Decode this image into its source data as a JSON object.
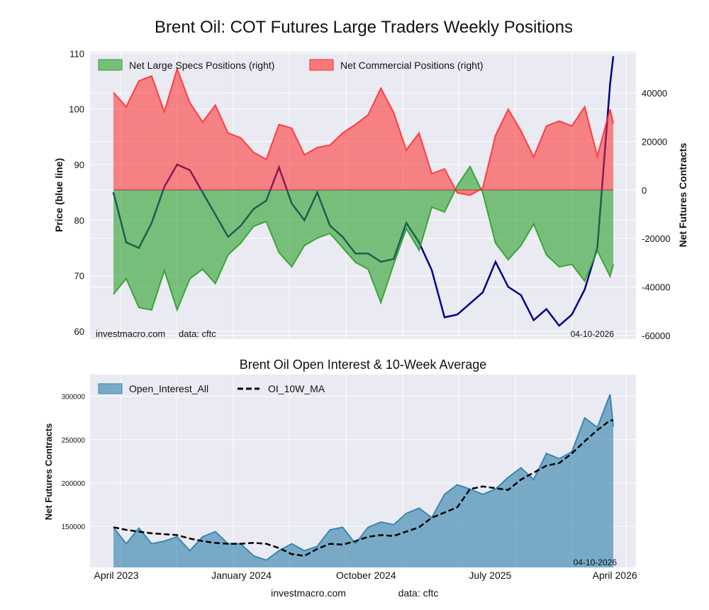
{
  "title": "Brent Oil: COT Futures Large Traders Weekly Positions",
  "colors": {
    "background": "#eaeaf2",
    "grid": "#ffffff",
    "price": "#00008b",
    "specs": "#2ca02c",
    "commercial": "#ff2a2a",
    "open_interest": "#3a87b0",
    "ma": "#000000"
  },
  "chart_data": [
    {
      "type": "line+area",
      "title": "Brent Oil: COT Futures Large Traders Weekly Positions",
      "ylabel": "Price (blue line)",
      "ylabel_right": "Net Futures Contracts",
      "ylim": [
        58.6,
        110.3
      ],
      "ylim_right": [
        -61500,
        57000
      ],
      "yticks": [
        60,
        70,
        80,
        90,
        100,
        110
      ],
      "yticks_right": [
        40000,
        20000,
        0,
        -20000,
        -40000,
        -60000
      ],
      "grid": true,
      "legend_position": "top-left",
      "watermark": "investmacro.com",
      "source": "data: cftc",
      "date_stamp": "04-10-2026",
      "x": [
        "2023-04-04",
        "2023-05-02",
        "2023-05-30",
        "2023-06-27",
        "2023-07-25",
        "2023-08-22",
        "2023-09-19",
        "2023-10-17",
        "2023-11-14",
        "2023-12-12",
        "2024-01-09",
        "2024-02-06",
        "2024-03-05",
        "2024-04-02",
        "2024-04-30",
        "2024-05-28",
        "2024-06-25",
        "2024-07-23",
        "2024-08-20",
        "2024-09-17",
        "2024-10-15",
        "2024-11-12",
        "2024-12-10",
        "2025-01-07",
        "2025-02-04",
        "2025-03-04",
        "2025-04-01",
        "2025-04-29",
        "2025-05-27",
        "2025-06-24",
        "2025-07-22",
        "2025-08-19",
        "2025-09-16",
        "2025-10-14",
        "2025-11-11",
        "2025-12-09",
        "2026-01-06",
        "2026-02-03",
        "2026-03-03",
        "2026-03-31",
        "2026-04-07"
      ],
      "series": [
        {
          "name": "Price",
          "axis": "left",
          "values": [
            85,
            76,
            75,
            79.5,
            86,
            90,
            89,
            85,
            81,
            77,
            79,
            82,
            83.5,
            89.5,
            83,
            80,
            85,
            79,
            77,
            74,
            74,
            72.5,
            73,
            79.5,
            76,
            71,
            62.5,
            63,
            65,
            67,
            72.5,
            68,
            66.5,
            62,
            64,
            61,
            63,
            67.5,
            75,
            104.5,
            109.5
          ]
        },
        {
          "name": "Net Large Specs Positions (right)",
          "axis": "right",
          "values": [
            -43000,
            -36600,
            -48500,
            -49500,
            -33200,
            -49500,
            -36600,
            -32700,
            -38600,
            -26800,
            -21900,
            -15000,
            -13000,
            -25800,
            -31700,
            -22900,
            -19900,
            -17900,
            -23800,
            -29800,
            -32700,
            -46500,
            -30700,
            -16000,
            -24800,
            -7100,
            -9100,
            1800,
            9700,
            -1200,
            -21900,
            -28800,
            -22900,
            -14000,
            -26800,
            -31700,
            -30700,
            -37600,
            -25000,
            -35600,
            -30700
          ]
        },
        {
          "name": "Net Commercial Positions (right)",
          "axis": "right",
          "values": [
            40200,
            34300,
            45000,
            47000,
            32300,
            50000,
            36000,
            28000,
            35000,
            23500,
            21500,
            15500,
            12600,
            27000,
            25500,
            14500,
            17500,
            18500,
            23500,
            27000,
            31000,
            42000,
            32000,
            16500,
            23500,
            6700,
            8700,
            -1200,
            -2200,
            800,
            22500,
            33300,
            24400,
            13600,
            26400,
            28400,
            26400,
            34300,
            14000,
            33300,
            27400
          ]
        }
      ]
    },
    {
      "type": "area+line",
      "title": "Brent Oil Open Interest & 10-Week Average",
      "ylabel": "Net Futures Contracts",
      "ylim": [
        102700,
        325000
      ],
      "yticks": [
        150000,
        200000,
        250000,
        300000
      ],
      "xticks": [
        {
          "label": "April 2023",
          "date": "2023-04-01"
        },
        {
          "label": "January 2024",
          "date": "2024-01-01"
        },
        {
          "label": "October 2024",
          "date": "2024-10-01"
        },
        {
          "label": "July 2025",
          "date": "2025-07-01"
        },
        {
          "label": "April 2026",
          "date": "2026-04-01"
        }
      ],
      "grid": true,
      "legend_position": "top-left",
      "date_stamp": "04-10-2026",
      "series": [
        {
          "name": "Open_Interest_All",
          "values": [
            149000,
            130000,
            148000,
            130000,
            133000,
            138000,
            122000,
            138000,
            144000,
            130000,
            130000,
            116000,
            111000,
            122000,
            130000,
            122000,
            127000,
            146000,
            149000,
            130000,
            149000,
            155000,
            152000,
            165000,
            171000,
            160000,
            187000,
            198000,
            193000,
            187000,
            193000,
            206500,
            217500,
            204000,
            234000,
            228000,
            236000,
            275000,
            264000,
            302000,
            265000
          ]
        },
        {
          "name": "OI_10W_MA",
          "values": [
            149000,
            146000,
            144000,
            142000,
            141000,
            140000,
            136000,
            133000,
            131000,
            130000,
            130000,
            131000,
            130000,
            125000,
            118000,
            116000,
            124000,
            130000,
            129000,
            133000,
            138000,
            140000,
            139000,
            144000,
            149000,
            160000,
            166000,
            172000,
            193000,
            196000,
            194000,
            192000,
            204000,
            212000,
            220000,
            223000,
            234000,
            248000,
            261000,
            272000,
            272000
          ]
        }
      ]
    }
  ],
  "footer": {
    "site": "investmacro.com",
    "source": "data: cftc"
  }
}
